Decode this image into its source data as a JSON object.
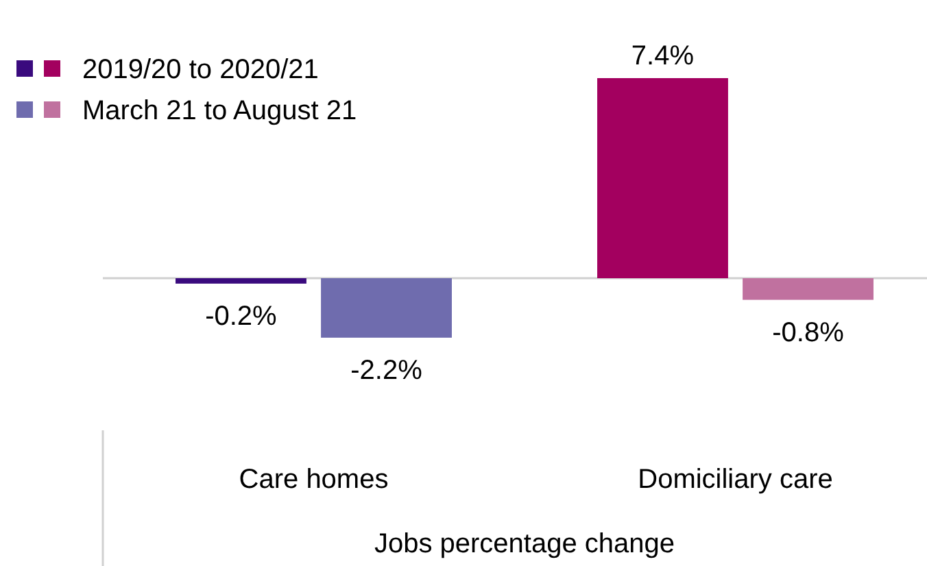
{
  "chart_data": {
    "type": "bar",
    "xlabel": "Jobs percentage change",
    "categories": [
      "Care homes",
      "Domiciliary care"
    ],
    "series": [
      {
        "name": "2019/20 to 2020/21",
        "colors": [
          "#3a0a7e",
          "#a3005f"
        ],
        "values": [
          -0.2,
          7.4
        ],
        "value_labels": [
          "-0.2%",
          "7.4%"
        ]
      },
      {
        "name": "March 21 to August 21",
        "colors": [
          "#6f6cae",
          "#c0719f"
        ],
        "values": [
          -2.2,
          -0.8
        ],
        "value_labels": [
          "-2.2%",
          "-0.8%"
        ]
      }
    ],
    "legend": "top left"
  }
}
